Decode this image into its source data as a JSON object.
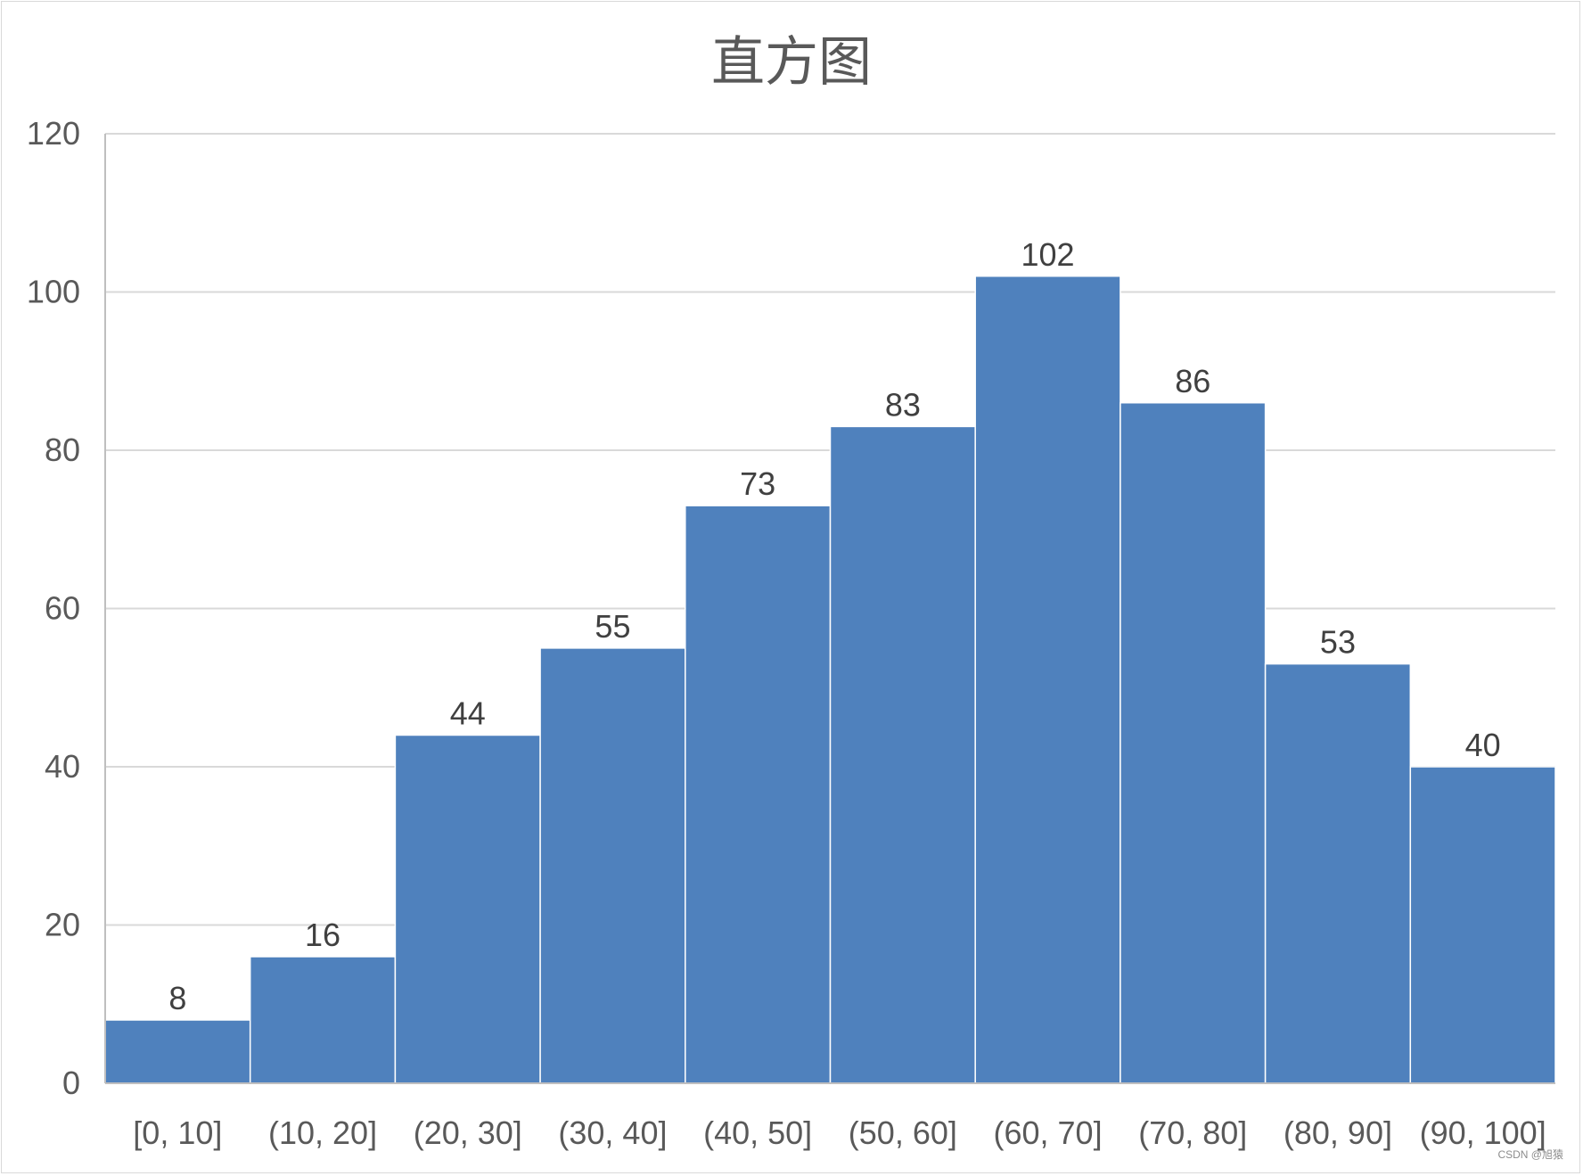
{
  "chart_data": {
    "type": "bar",
    "title": "直方图",
    "xlabel": "",
    "ylabel": "",
    "categories": [
      "[0, 10]",
      "(10, 20]",
      "(20, 30]",
      "(30, 40]",
      "(40, 50]",
      "(50, 60]",
      "(60, 70]",
      "(70, 80]",
      "(80, 90]",
      "(90, 100]"
    ],
    "values": [
      8,
      16,
      44,
      55,
      73,
      83,
      102,
      86,
      53,
      40
    ],
    "ylim": [
      0,
      120
    ],
    "yticks": [
      0,
      20,
      40,
      60,
      80,
      100,
      120
    ],
    "grid": true,
    "data_labels": true,
    "bar_color": "#4f81bd"
  },
  "watermark": "CSDN @旭猿"
}
